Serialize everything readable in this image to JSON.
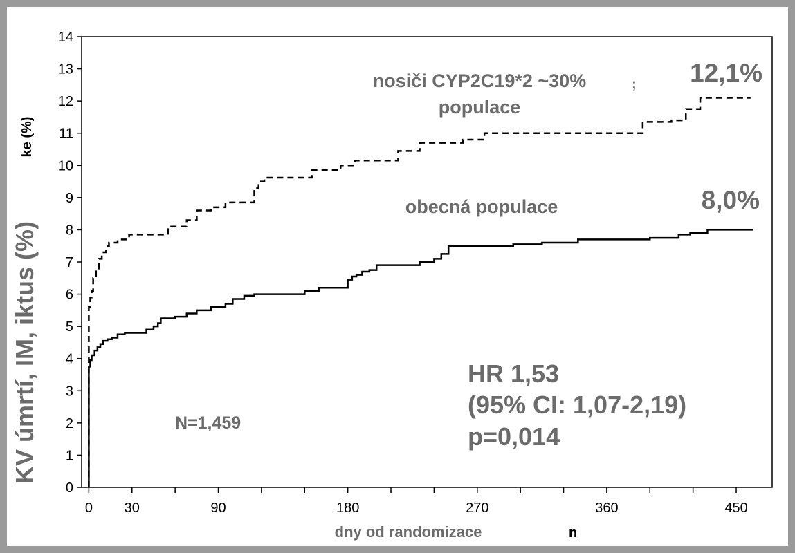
{
  "chart_data": {
    "type": "line",
    "ylabel_main": "KV úmrtí, IM, iktus (%)",
    "ylabel_fragment": "ke (%)",
    "xlabel": "dny od randomizace",
    "xlabel_fragment": "n",
    "xlim": [
      -5,
      475
    ],
    "ylim": [
      0,
      14
    ],
    "x_ticks": [
      0,
      30,
      90,
      180,
      270,
      360,
      450
    ],
    "x_minor_ticks": [
      60,
      120,
      150,
      210,
      240,
      300,
      330,
      390,
      420
    ],
    "y_ticks": [
      0,
      1,
      2,
      3,
      4,
      5,
      6,
      7,
      8,
      9,
      10,
      11,
      12,
      13,
      14
    ],
    "series": [
      {
        "name": "nosiči CYP2C19*2 ~30%\npopulace",
        "style": "dashed",
        "end_label": "12,1%",
        "x": [
          0,
          0,
          1,
          2,
          3,
          5,
          7,
          9,
          12,
          14,
          20,
          28,
          35,
          55,
          58,
          68,
          75,
          85,
          95,
          115,
          118,
          122,
          130,
          155,
          160,
          175,
          185,
          205,
          215,
          225,
          230,
          240,
          260,
          275,
          300,
          330,
          380,
          385,
          395,
          405,
          415,
          420,
          425,
          460
        ],
        "values": [
          0,
          5.6,
          5.9,
          6.1,
          6.5,
          6.8,
          7.1,
          7.3,
          7.5,
          7.6,
          7.7,
          7.85,
          7.85,
          8.1,
          8.1,
          8.3,
          8.6,
          8.7,
          8.85,
          9.3,
          9.5,
          9.62,
          9.62,
          9.85,
          9.85,
          10.0,
          10.15,
          10.15,
          10.45,
          10.45,
          10.7,
          10.7,
          10.8,
          11.0,
          11.0,
          11.0,
          11.0,
          11.35,
          11.35,
          11.4,
          11.75,
          11.75,
          12.1,
          12.1
        ]
      },
      {
        "name": "obecná populace",
        "style": "solid",
        "end_label": "8,0%",
        "x": [
          0,
          0,
          1,
          2,
          4,
          6,
          8,
          10,
          13,
          16,
          20,
          25,
          35,
          40,
          45,
          48,
          50,
          60,
          68,
          75,
          85,
          95,
          100,
          108,
          115,
          125,
          150,
          160,
          170,
          180,
          183,
          186,
          190,
          195,
          200,
          215,
          230,
          235,
          240,
          245,
          250,
          275,
          295,
          315,
          340,
          370,
          390,
          410,
          418,
          430,
          462
        ],
        "values": [
          0,
          3.75,
          3.95,
          4.1,
          4.25,
          4.35,
          4.45,
          4.55,
          4.6,
          4.65,
          4.75,
          4.8,
          4.8,
          4.9,
          5.0,
          5.1,
          5.25,
          5.3,
          5.4,
          5.5,
          5.6,
          5.7,
          5.85,
          5.95,
          6.0,
          6.0,
          6.1,
          6.2,
          6.2,
          6.45,
          6.55,
          6.6,
          6.7,
          6.75,
          6.9,
          6.9,
          7.0,
          7.0,
          7.1,
          7.25,
          7.5,
          7.5,
          7.55,
          7.6,
          7.7,
          7.7,
          7.75,
          7.85,
          7.9,
          8.0,
          8.0
        ]
      }
    ],
    "annotations": {
      "n": "N=1,459",
      "hr_line1": "HR 1,53",
      "hr_line2": "(95% CI: 1,07-2,19)",
      "hr_line3": "p=0,014",
      "stray_mark": ";"
    }
  }
}
